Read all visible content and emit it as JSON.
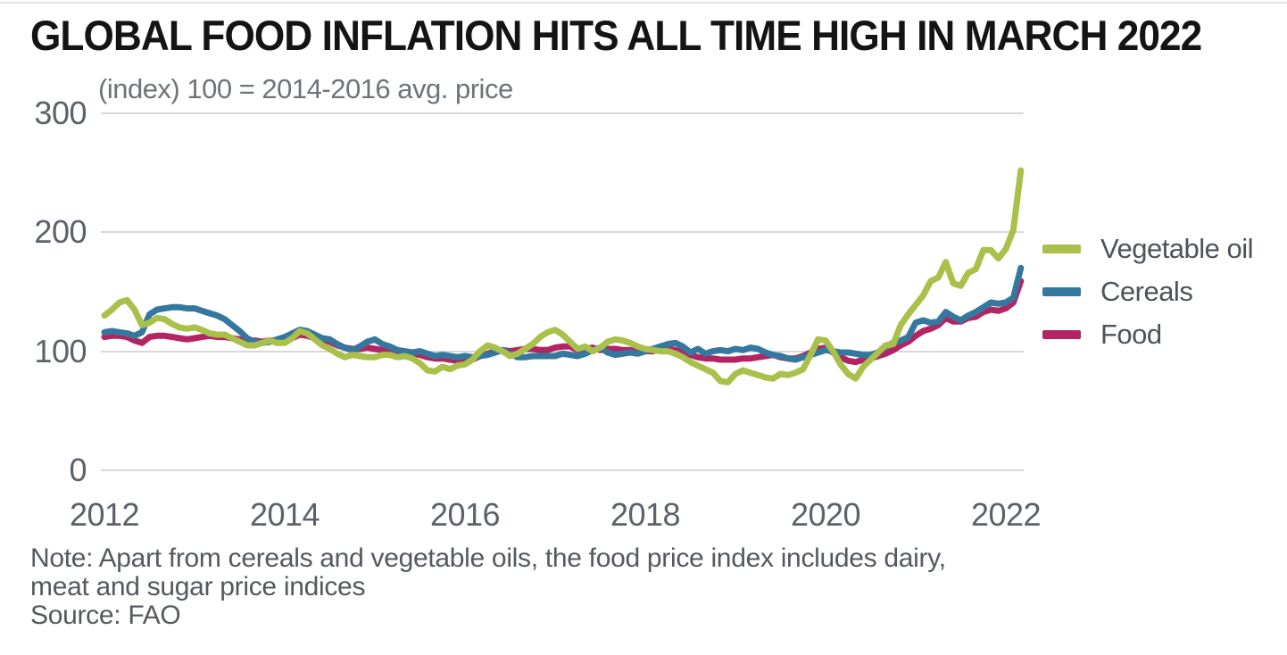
{
  "page": {
    "title": "GLOBAL FOOD INFLATION HITS ALL TIME HIGH IN MARCH 2022",
    "subtitle": "(index) 100 = 2014-2016 avg. price",
    "note_line1": "Note: Apart from cereals and vegetable oils, the food price index includes dairy,",
    "note_line2": "meat and sugar price indices",
    "source": "Source: FAO"
  },
  "chart_data": {
    "type": "line",
    "title": "GLOBAL FOOD INFLATION HITS ALL TIME HIGH IN MARCH 2022",
    "subtitle": "(index) 100 = 2014-2016 avg. price",
    "frequency": "monthly",
    "x_start": "2012-01",
    "x_end": "2022-03",
    "x_tick_labels": [
      "2012",
      "2014",
      "2016",
      "2018",
      "2020",
      "2022"
    ],
    "y_tick_labels": [
      "300",
      "200",
      "100",
      "0"
    ],
    "y_ticks": [
      300,
      200,
      100,
      0
    ],
    "ylim": [
      0,
      300
    ],
    "grid": "horizontal",
    "legend_position": "right",
    "note": "Note: Apart from cereals and vegetable oils, the food price index includes dairy, meat and sugar price indices",
    "source": "FAO",
    "series": [
      {
        "name": "Vegetable oil",
        "color": "#a9c04a",
        "values": [
          130,
          135,
          141,
          143,
          135,
          122,
          124,
          128,
          127,
          123,
          120,
          119,
          120,
          118,
          115,
          114,
          114,
          111,
          108,
          105,
          105,
          107,
          109,
          107,
          107,
          111,
          117,
          115,
          110,
          105,
          102,
          98,
          95,
          97,
          96,
          95,
          95,
          97,
          97,
          95,
          96,
          94,
          90,
          84,
          83,
          87,
          85,
          88,
          89,
          93,
          100,
          105,
          103,
          100,
          96,
          98,
          102,
          106,
          112,
          116,
          118,
          114,
          108,
          102,
          104,
          100,
          103,
          108,
          110,
          109,
          107,
          104,
          102,
          101,
          100,
          100,
          98,
          95,
          91,
          88,
          85,
          82,
          75,
          74,
          81,
          84,
          82,
          80,
          78,
          77,
          81,
          80,
          82,
          85,
          97,
          110,
          109,
          100,
          89,
          81,
          77,
          87,
          93,
          99,
          105,
          106,
          122,
          131,
          139,
          147,
          159,
          162,
          175,
          157,
          155,
          166,
          169,
          185,
          185,
          178,
          186,
          202,
          252
        ]
      },
      {
        "name": "Cereals",
        "color": "#34789f",
        "values": [
          116,
          117,
          116,
          115,
          113,
          116,
          131,
          135,
          136,
          137,
          137,
          136,
          136,
          134,
          132,
          130,
          127,
          122,
          117,
          111,
          108,
          107,
          108,
          110,
          112,
          115,
          118,
          117,
          114,
          111,
          110,
          106,
          103,
          101,
          104,
          108,
          110,
          106,
          104,
          101,
          100,
          99,
          100,
          98,
          96,
          97,
          96,
          95,
          96,
          95,
          96,
          97,
          99,
          101,
          98,
          95,
          95,
          96,
          96,
          96,
          96,
          98,
          97,
          96,
          98,
          101,
          103,
          99,
          97,
          98,
          99,
          98,
          100,
          102,
          104,
          106,
          107,
          104,
          99,
          102,
          98,
          100,
          101,
          100,
          102,
          101,
          103,
          102,
          99,
          97,
          96,
          94,
          93,
          95,
          97,
          99,
          101,
          100,
          99,
          99,
          98,
          97,
          97,
          99,
          104,
          107,
          109,
          112,
          124,
          126,
          124,
          125,
          133,
          129,
          126,
          130,
          133,
          137,
          141,
          140,
          141,
          145,
          170
        ]
      },
      {
        "name": "Food",
        "color": "#b32562",
        "values": [
          112,
          113,
          113,
          112,
          109,
          107,
          112,
          113,
          113,
          112,
          111,
          110,
          111,
          112,
          113,
          112,
          112,
          111,
          110,
          109,
          109,
          108,
          109,
          109,
          108,
          111,
          114,
          113,
          111,
          109,
          108,
          105,
          103,
          102,
          102,
          103,
          102,
          101,
          100,
          100,
          99,
          98,
          97,
          95,
          94,
          94,
          93,
          92,
          92,
          93,
          96,
          98,
          100,
          101,
          100,
          101,
          102,
          102,
          101,
          101,
          103,
          104,
          104,
          101,
          102,
          103,
          101,
          102,
          102,
          101,
          101,
          100,
          100,
          100,
          102,
          102,
          101,
          99,
          97,
          95,
          94,
          94,
          93,
          93,
          93,
          94,
          94,
          95,
          96,
          97,
          95,
          94,
          94,
          96,
          99,
          102,
          103,
          99,
          95,
          92,
          91,
          93,
          94,
          96,
          98,
          101,
          105,
          108,
          113,
          117,
          119,
          122,
          128,
          125,
          125,
          128,
          129,
          133,
          135,
          134,
          136,
          141,
          159
        ]
      }
    ]
  }
}
